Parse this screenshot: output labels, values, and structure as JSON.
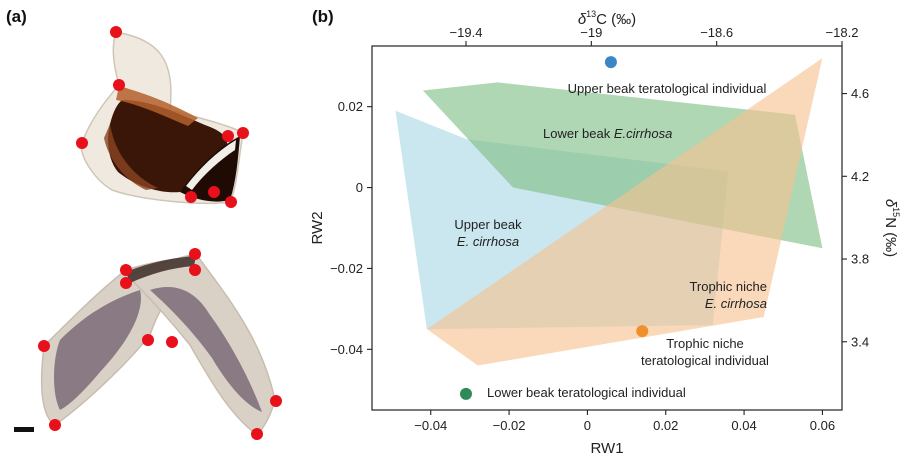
{
  "panels": {
    "a": "(a)",
    "b": "(b)"
  },
  "colors": {
    "upper_beak": "#a9d6e5",
    "lower_beak": "#7fbf86",
    "trophic_niche": "#f6c28f",
    "upper_point": "#3b86c6",
    "lower_point": "#2e8b57",
    "niche_point": "#f0902c",
    "landmark": "#e8101a",
    "beak_dark": "#3a1608",
    "beak_amber": "#b45f2a",
    "beak_edge": "#e9e4dc"
  },
  "icons": {
    "upper_beak_photo": "upper-beak-photo",
    "lower_beak_photo": "lower-beak-photo",
    "scale_bar": "scale-bar"
  },
  "chart_data": {
    "type": "scatter",
    "x_axis": {
      "label": "RW1",
      "range": [
        -0.055,
        0.065
      ],
      "ticks": [
        -0.04,
        -0.02,
        0,
        0.02,
        0.04,
        0.06
      ],
      "tick_labels": [
        "−0.04",
        "−0.02",
        "0",
        "0.02",
        "0.04",
        "0.06"
      ]
    },
    "y_axis": {
      "label": "RW2",
      "range": [
        -0.055,
        0.035
      ],
      "ticks": [
        0.02,
        0,
        -0.02,
        -0.04
      ],
      "tick_labels": [
        "0.02",
        "0",
        "−0.02",
        "−0.04"
      ]
    },
    "top_axis": {
      "label": "δ13C (‰)",
      "range": [
        -19.7,
        -18.2
      ],
      "ticks": [
        -19.4,
        -19,
        -18.6,
        -18.2
      ],
      "tick_labels": [
        "−19.4",
        "−19",
        "−18.6",
        "−18.2"
      ]
    },
    "right_axis": {
      "label": "δ15N (‰)",
      "range": [
        3.07,
        4.83
      ],
      "ticks": [
        4.6,
        4.2,
        3.8,
        3.4
      ],
      "tick_labels": [
        "4.6",
        "4.2",
        "3.8",
        "3.4"
      ]
    },
    "polygons": [
      {
        "name": "Upper beak E. cirrhosa",
        "color_key": "upper_beak",
        "label_lines": [
          "Upper beak",
          "E. cirrhosa"
        ],
        "points": [
          [
            -0.049,
            0.019
          ],
          [
            -0.031,
            0.012
          ],
          [
            0.036,
            0.004
          ],
          [
            0.032,
            -0.034
          ],
          [
            -0.041,
            -0.035
          ]
        ]
      },
      {
        "name": "Lower beak E.cirrhosa",
        "color_key": "lower_beak",
        "label_lines": [
          "Lower beak E.cirrhosa"
        ],
        "points": [
          [
            -0.042,
            0.024
          ],
          [
            -0.023,
            0.026
          ],
          [
            0.053,
            0.018
          ],
          [
            0.06,
            -0.015
          ],
          [
            -0.019,
            0
          ]
        ]
      },
      {
        "name": "Trophic niche E. cirrhosa",
        "color_key": "trophic_niche",
        "label_lines": [
          "Trophic niche",
          "E. cirrhosa"
        ],
        "points": [
          [
            -0.041,
            -0.035
          ],
          [
            0.06,
            0.032
          ],
          [
            0.045,
            -0.032
          ],
          [
            -0.028,
            -0.044
          ]
        ]
      }
    ],
    "points": [
      {
        "name": "Upper beak teratological individual",
        "color_key": "upper_point",
        "x": 0.006,
        "y": 0.031
      },
      {
        "name": "Trophic niche teratological individual",
        "color_key": "niche_point",
        "x": 0.014,
        "y": -0.0355
      },
      {
        "name": "Lower beak teratological individual",
        "color_key": "lower_point",
        "x": -0.031,
        "y": -0.051
      }
    ],
    "annotations": {
      "upper_point": "Upper beak teratological individual",
      "lower_point": "Lower beak teratological individual",
      "niche_point_1": "Trophic niche",
      "niche_point_2": "teratological individual"
    }
  }
}
